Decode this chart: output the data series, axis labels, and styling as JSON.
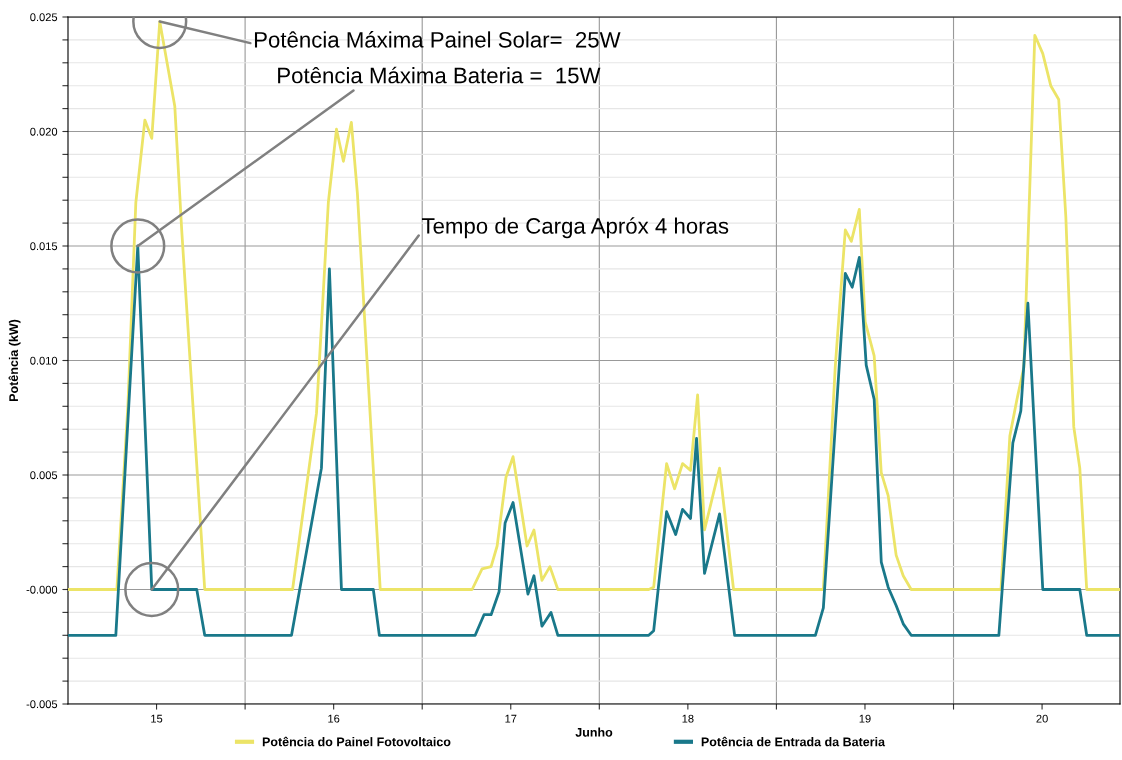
{
  "chart_data": {
    "type": "line",
    "xlabel": "Junho",
    "ylabel": "Potência (kW)",
    "xlim": [
      15.0,
      20.94
    ],
    "ylim": [
      -0.005,
      0.025
    ],
    "xticks": [
      {
        "value": 15.5,
        "label": "15"
      },
      {
        "value": 16,
        "label": null
      },
      {
        "value": 16.5,
        "label": "16"
      },
      {
        "value": 17,
        "label": null
      },
      {
        "value": 17.5,
        "label": "17"
      },
      {
        "value": 18,
        "label": null
      },
      {
        "value": 18.5,
        "label": "18"
      },
      {
        "value": 19,
        "label": null
      },
      {
        "value": 19.5,
        "label": "19"
      },
      {
        "value": 20,
        "label": null
      },
      {
        "value": 20.5,
        "label": "20"
      }
    ],
    "yticks": [
      {
        "value": -0.005,
        "label": "-0.005"
      },
      {
        "value": -0.004,
        "label": null
      },
      {
        "value": -0.003,
        "label": null
      },
      {
        "value": -0.002,
        "label": null
      },
      {
        "value": -0.001,
        "label": null
      },
      {
        "value": 0,
        "label": "-0.000"
      },
      {
        "value": 0.001,
        "label": null
      },
      {
        "value": 0.002,
        "label": null
      },
      {
        "value": 0.003,
        "label": null
      },
      {
        "value": 0.004,
        "label": null
      },
      {
        "value": 0.005,
        "label": "0.005"
      },
      {
        "value": 0.006,
        "label": null
      },
      {
        "value": 0.007,
        "label": null
      },
      {
        "value": 0.008,
        "label": null
      },
      {
        "value": 0.009,
        "label": null
      },
      {
        "value": 0.01,
        "label": "0.010"
      },
      {
        "value": 0.011,
        "label": null
      },
      {
        "value": 0.012,
        "label": null
      },
      {
        "value": 0.013,
        "label": null
      },
      {
        "value": 0.014,
        "label": null
      },
      {
        "value": 0.015,
        "label": "0.015"
      },
      {
        "value": 0.016,
        "label": null
      },
      {
        "value": 0.017,
        "label": null
      },
      {
        "value": 0.018,
        "label": null
      },
      {
        "value": 0.019,
        "label": null
      },
      {
        "value": 0.02,
        "label": "0.020"
      },
      {
        "value": 0.021,
        "label": null
      },
      {
        "value": 0.022,
        "label": null
      },
      {
        "value": 0.023,
        "label": null
      },
      {
        "value": 0.024,
        "label": null
      },
      {
        "value": 0.025,
        "label": "0.025"
      }
    ],
    "grid": true,
    "legend": "bottom",
    "marker": "none",
    "line_style": "solid",
    "series": [
      {
        "name": "Potência do Painel Fotovoltaico",
        "color": "#ece467",
        "x": [
          15.0,
          15.276,
          15.338,
          15.383,
          15.434,
          15.473,
          15.518,
          15.603,
          15.642,
          15.772,
          16.268,
          16.403,
          16.47,
          16.516,
          16.555,
          16.6,
          16.634,
          16.763,
          17.282,
          17.338,
          17.389,
          17.423,
          17.473,
          17.513,
          17.592,
          17.631,
          17.676,
          17.721,
          17.766,
          18.279,
          18.307,
          18.38,
          18.425,
          18.47,
          18.515,
          18.555,
          18.594,
          18.679,
          18.758,
          19.265,
          19.332,
          19.389,
          19.423,
          19.468,
          19.501,
          19.552,
          19.592,
          19.631,
          19.676,
          19.716,
          19.761,
          20.268,
          20.318,
          20.358,
          20.397,
          20.459,
          20.504,
          20.549,
          20.594,
          20.634,
          20.679,
          20.713,
          20.752,
          20.938
        ],
        "values": [
          0,
          0,
          0.008,
          0.0169,
          0.0205,
          0.0197,
          0.0248,
          0.0211,
          0.0157,
          0,
          0,
          0.0077,
          0.0169,
          0.0201,
          0.0187,
          0.0204,
          0.0173,
          0,
          0,
          0.0009,
          0.001,
          0.0019,
          0.0049,
          0.0058,
          0.0019,
          0.0026,
          0.0004,
          0.001,
          0,
          0,
          0.0001,
          0.0055,
          0.0044,
          0.0055,
          0.0052,
          0.0085,
          0.0026,
          0.0053,
          0,
          0,
          0.0097,
          0.0157,
          0.0152,
          0.0166,
          0.0117,
          0.0102,
          0.0051,
          0.0041,
          0.0015,
          0.0006,
          0,
          0,
          0.0067,
          0.0083,
          0.0097,
          0.0242,
          0.0234,
          0.022,
          0.0214,
          0.0163,
          0.0071,
          0.0053,
          0,
          0
        ]
      },
      {
        "name": "Potência de Entrada da Bateria",
        "color": "#19788a",
        "x": [
          15.0,
          15.27,
          15.394,
          15.473,
          15.727,
          15.772,
          16.262,
          16.431,
          16.476,
          16.544,
          16.724,
          16.758,
          17.299,
          17.349,
          17.389,
          17.434,
          17.468,
          17.513,
          17.597,
          17.631,
          17.676,
          17.727,
          17.766,
          18.279,
          18.307,
          18.38,
          18.431,
          18.47,
          18.515,
          18.549,
          18.594,
          18.679,
          18.764,
          19.22,
          19.265,
          19.389,
          19.428,
          19.468,
          19.507,
          19.552,
          19.592,
          19.631,
          19.676,
          19.716,
          19.761,
          20.256,
          20.335,
          20.38,
          20.42,
          20.504,
          20.713,
          20.752,
          20.938
        ],
        "values": [
          -0.002,
          -0.002,
          0.015,
          0,
          0,
          -0.002,
          -0.002,
          0.0053,
          0.014,
          0,
          0,
          -0.002,
          -0.002,
          -0.0011,
          -0.0011,
          -0.0001,
          0.0029,
          0.0038,
          -0.0002,
          0.0006,
          -0.0016,
          -0.001,
          -0.002,
          -0.002,
          -0.0018,
          0.0034,
          0.0024,
          0.0035,
          0.0031,
          0.0066,
          0.0007,
          0.0033,
          -0.002,
          -0.002,
          -0.0008,
          0.0138,
          0.0132,
          0.0145,
          0.0098,
          0.0083,
          0.0012,
          0.0001,
          -0.0007,
          -0.0015,
          -0.002,
          -0.002,
          0.0064,
          0.0078,
          0.0125,
          0,
          0,
          -0.002,
          -0.002
        ]
      }
    ],
    "annotations": [
      {
        "text": "Potência Máxima Painel Solar=  25W",
        "x": 15.518,
        "y": 0.0248
      },
      {
        "text": "Potência Máxima Bateria =  15W",
        "x": 15.394,
        "y": 0.015
      },
      {
        "text": "Tempo de Carga Apróx 4 horas",
        "x": 15.473,
        "y": 0
      }
    ]
  }
}
